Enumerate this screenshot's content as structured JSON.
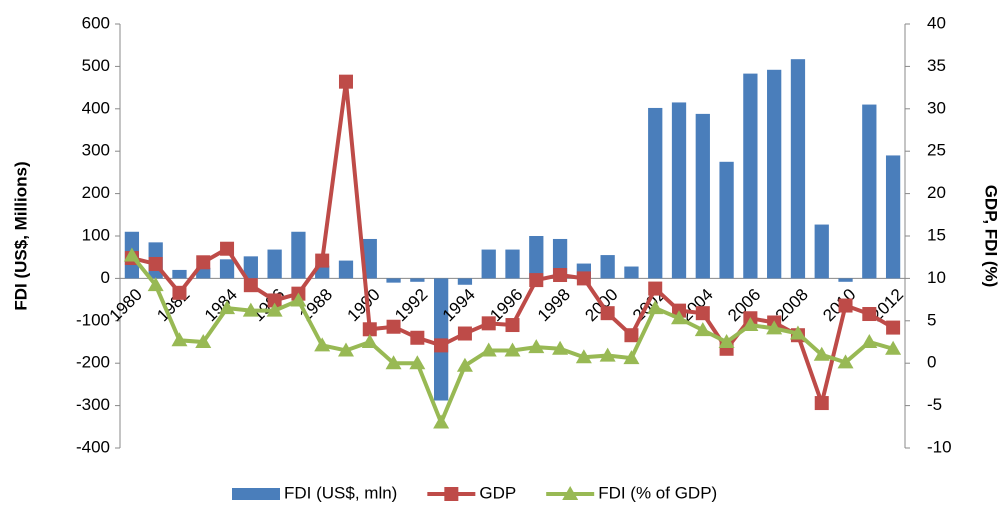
{
  "chart_data": {
    "type": "bar-line",
    "y_label": "FDI (US$, Millions)",
    "y2_label": "GDP, FDI (%)",
    "categories": [
      "1980",
      null,
      "1982",
      null,
      "1984",
      null,
      "1986",
      null,
      "1988",
      null,
      "1990",
      null,
      "1992",
      null,
      "1994",
      null,
      "1996",
      null,
      "1998",
      null,
      "2000",
      null,
      "2002",
      null,
      "2004",
      null,
      "2006",
      null,
      "2008",
      null,
      "2010",
      null,
      "2012"
    ],
    "series": [
      {
        "name": "FDI (US$, mln)",
        "type": "bar",
        "color": "#4a7ebb",
        "values": [
          110,
          85,
          20,
          25,
          45,
          52,
          68,
          110,
          30,
          42,
          93,
          -10,
          -8,
          -288,
          -15,
          68,
          68,
          100,
          93,
          35,
          55,
          28,
          402,
          415,
          388,
          275,
          483,
          492,
          517,
          127,
          -8,
          410,
          290
        ]
      },
      {
        "name": "GDP",
        "type": "line",
        "marker": "square",
        "axis": "y2",
        "color": "#be4b48",
        "values": [
          12.4,
          11.7,
          8.3,
          11.9,
          13.5,
          9.2,
          7.4,
          8.2,
          12.1,
          33.2,
          4,
          4.3,
          3,
          2.1,
          3.5,
          4.7,
          4.5,
          9.8,
          10.4,
          10,
          5.9,
          3.3,
          8.8,
          6.2,
          5.9,
          1.7,
          5.3,
          4.8,
          3.3,
          -4.7,
          6.8,
          5.8,
          4.2
        ]
      },
      {
        "name": "FDI (% of GDP)",
        "type": "line",
        "marker": "triangle",
        "axis": "y2",
        "color": "#98b954",
        "values": [
          12.7,
          9.2,
          2.7,
          2.5,
          6.5,
          6.2,
          6.2,
          7.4,
          2.1,
          1.5,
          2.5,
          0,
          0,
          -7,
          -0.3,
          1.5,
          1.5,
          1.9,
          1.7,
          0.7,
          0.9,
          0.6,
          6.5,
          5.3,
          3.9,
          2.5,
          4.5,
          4.1,
          3.5,
          1,
          0.1,
          2.5,
          1.7
        ]
      }
    ],
    "ylim": [
      -400,
      600
    ],
    "yticks": [
      -400,
      -300,
      -200,
      -100,
      0,
      100,
      200,
      300,
      400,
      500,
      600
    ],
    "y2lim": [
      -10,
      40
    ],
    "y2ticks": [
      -10,
      -5,
      0,
      5,
      10,
      15,
      20,
      25,
      30,
      35,
      40
    ],
    "legend": "bottom"
  }
}
